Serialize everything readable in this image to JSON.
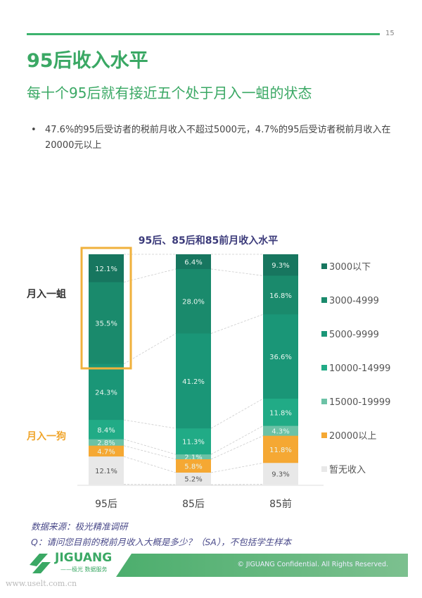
{
  "page_number": "15",
  "title": "95后收入水平",
  "subtitle": "每十个95后就有接近五个处于月入一蛆的状态",
  "bullet": "47.6%的95后受访者的税前月收入不超过5000元，4.7%的95后受访者税前月收入在20000元以上",
  "annotations": {
    "high": "月入一蛆",
    "low": "月入一狗"
  },
  "source": "数据来源：极光精准调研",
  "question": "Q：请问您目前的税前月收入大概是多少？（SA），不包括学生样本",
  "footer": {
    "logo": "JIGUANG",
    "logo_sub": "——极光 数据服务",
    "copyright": "© JIGUANG Confidential. All Rights Reserved."
  },
  "watermark": "www.uselt.com.cn",
  "chart_data": {
    "type": "bar",
    "stacked": true,
    "title": "95后、85后和85前月收入水平",
    "categories": [
      "95后",
      "85后",
      "85前"
    ],
    "series": [
      {
        "name": "3000以下",
        "color": "#17765f",
        "values": [
          12.1,
          6.4,
          9.3
        ]
      },
      {
        "name": "3000-4999",
        "color": "#1a8a6c",
        "values": [
          35.5,
          28.0,
          16.8
        ]
      },
      {
        "name": "5000-9999",
        "color": "#1a9677",
        "values": [
          24.3,
          41.2,
          36.6
        ]
      },
      {
        "name": "10000-14999",
        "color": "#21ab86",
        "values": [
          8.4,
          11.3,
          11.8
        ]
      },
      {
        "name": "15000-19999",
        "color": "#6cc2a6",
        "values": [
          2.8,
          2.1,
          4.3
        ]
      },
      {
        "name": "20000以上",
        "color": "#f5a833",
        "values": [
          4.7,
          5.8,
          11.8
        ]
      },
      {
        "name": "暂无收入",
        "color": "#e8e8e8",
        "values": [
          12.1,
          5.2,
          9.3
        ]
      }
    ],
    "legend": "right",
    "ylim": [
      0,
      100
    ]
  }
}
